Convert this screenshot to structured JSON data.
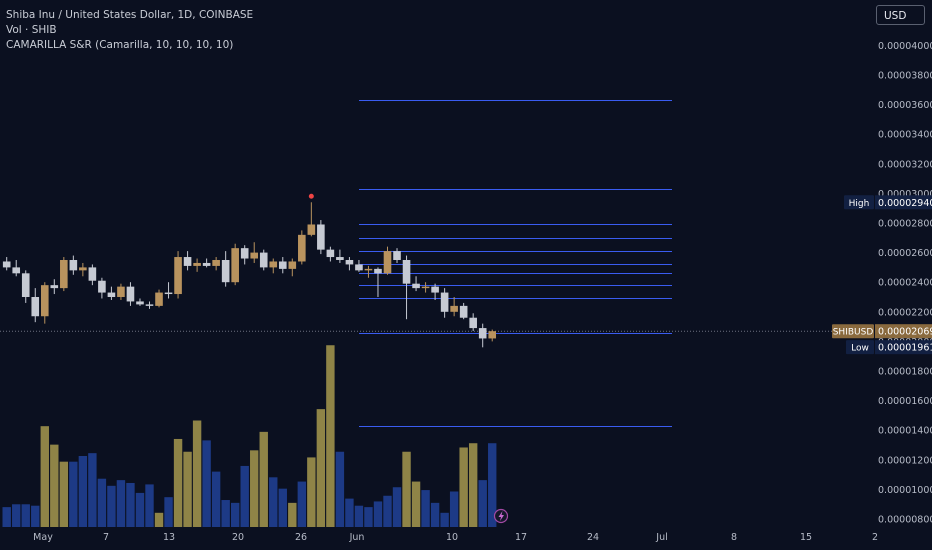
{
  "legend": {
    "line1": "Shiba Inu / United States Dollar, 1D, COINBASE",
    "line2": "Vol · SHIB",
    "line3": "CAMARILLA S&R (Camarilla, 10, 10, 10, 10)"
  },
  "currency_button": "USD",
  "colors": {
    "background": "#0b1020",
    "up": "#b9935e",
    "down": "#c6cad3",
    "vol_up": "#8f8447",
    "vol_down": "#1d3a86",
    "level_line": "#3a5cf0",
    "text": "#b7bcc8"
  },
  "chart_data": {
    "type": "candlestick",
    "symbol": "SHIBUSD",
    "ylim": [
      7.7e-06,
      4.1e-06
    ],
    "y_ticks": [
      "0.00000800",
      "0.00001000",
      "0.00001200",
      "0.00001400",
      "0.00001600",
      "0.00001800",
      "0.00002000",
      "0.00002200",
      "0.00002400",
      "0.00002600",
      "0.00002800",
      "0.00003000",
      "0.00003200",
      "0.00003400",
      "0.00003600",
      "0.00003800",
      "0.00004000"
    ],
    "x_ticks": [
      "May",
      "7",
      "13",
      "20",
      "26",
      "Jun",
      "10",
      "17",
      "24",
      "Jul",
      "8",
      "15",
      "2"
    ],
    "price_labels": [
      {
        "label": "High",
        "value": "0.00002940"
      },
      {
        "label": "SHIBUSD",
        "value": "0.00002069"
      },
      {
        "label": "Low",
        "value": "0.00001961"
      }
    ],
    "candles": [
      [
        2.54,
        2.57,
        2.48,
        2.5
      ],
      [
        2.5,
        2.55,
        2.44,
        2.46
      ],
      [
        2.46,
        2.48,
        2.26,
        2.3
      ],
      [
        2.3,
        2.36,
        2.13,
        2.17
      ],
      [
        2.17,
        2.4,
        2.12,
        2.38
      ],
      [
        2.38,
        2.42,
        2.32,
        2.36
      ],
      [
        2.36,
        2.57,
        2.34,
        2.55
      ],
      [
        2.55,
        2.58,
        2.45,
        2.48
      ],
      [
        2.48,
        2.53,
        2.44,
        2.5
      ],
      [
        2.5,
        2.52,
        2.38,
        2.41
      ],
      [
        2.41,
        2.43,
        2.29,
        2.33
      ],
      [
        2.33,
        2.37,
        2.28,
        2.3
      ],
      [
        2.3,
        2.39,
        2.28,
        2.37
      ],
      [
        2.37,
        2.4,
        2.24,
        2.27
      ],
      [
        2.27,
        2.29,
        2.24,
        2.25
      ],
      [
        2.25,
        2.27,
        2.22,
        2.24
      ],
      [
        2.24,
        2.35,
        2.23,
        2.33
      ],
      [
        2.33,
        2.4,
        2.29,
        2.32
      ],
      [
        2.32,
        2.61,
        2.29,
        2.57
      ],
      [
        2.57,
        2.61,
        2.48,
        2.51
      ],
      [
        2.51,
        2.56,
        2.47,
        2.53
      ],
      [
        2.53,
        2.56,
        2.5,
        2.51
      ],
      [
        2.51,
        2.57,
        2.48,
        2.55
      ],
      [
        2.55,
        2.61,
        2.37,
        2.4
      ],
      [
        2.4,
        2.66,
        2.38,
        2.63
      ],
      [
        2.63,
        2.65,
        2.52,
        2.56
      ],
      [
        2.56,
        2.67,
        2.53,
        2.6
      ],
      [
        2.6,
        2.62,
        2.48,
        2.5
      ],
      [
        2.5,
        2.56,
        2.46,
        2.54
      ],
      [
        2.54,
        2.57,
        2.46,
        2.49
      ],
      [
        2.49,
        2.56,
        2.44,
        2.54
      ],
      [
        2.54,
        2.75,
        2.52,
        2.72
      ],
      [
        2.72,
        2.94,
        2.71,
        2.79
      ],
      [
        2.79,
        2.82,
        2.59,
        2.62
      ],
      [
        2.62,
        2.64,
        2.54,
        2.57
      ],
      [
        2.57,
        2.62,
        2.53,
        2.55
      ],
      [
        2.55,
        2.57,
        2.48,
        2.52
      ],
      [
        2.52,
        2.55,
        2.47,
        2.48
      ],
      [
        2.48,
        2.51,
        2.43,
        2.49
      ],
      [
        2.49,
        2.5,
        2.3,
        2.46
      ],
      [
        2.46,
        2.64,
        2.45,
        2.61
      ],
      [
        2.61,
        2.63,
        2.53,
        2.55
      ],
      [
        2.55,
        2.58,
        2.15,
        2.39
      ],
      [
        2.39,
        2.44,
        2.34,
        2.36
      ],
      [
        2.36,
        2.4,
        2.33,
        2.37
      ],
      [
        2.37,
        2.39,
        2.28,
        2.33
      ],
      [
        2.33,
        2.36,
        2.16,
        2.2
      ],
      [
        2.2,
        2.3,
        2.17,
        2.24
      ],
      [
        2.24,
        2.26,
        2.15,
        2.16
      ],
      [
        2.16,
        2.19,
        2.07,
        2.09
      ],
      [
        2.09,
        2.12,
        1.96,
        2.02
      ],
      [
        2.02,
        2.08,
        2.0,
        2.069
      ]
    ],
    "volume": [
      [
        1.4,
        0
      ],
      [
        1.6,
        0
      ],
      [
        1.6,
        0
      ],
      [
        1.5,
        0
      ],
      [
        7.1,
        1
      ],
      [
        5.8,
        1
      ],
      [
        4.6,
        1
      ],
      [
        4.6,
        0
      ],
      [
        5.0,
        0
      ],
      [
        5.2,
        0
      ],
      [
        3.4,
        0
      ],
      [
        2.9,
        0
      ],
      [
        3.3,
        0
      ],
      [
        3.1,
        0
      ],
      [
        2.4,
        0
      ],
      [
        3.0,
        0
      ],
      [
        1.0,
        1
      ],
      [
        2.1,
        0
      ],
      [
        6.2,
        1
      ],
      [
        5.3,
        1
      ],
      [
        7.5,
        1
      ],
      [
        6.1,
        0
      ],
      [
        3.9,
        0
      ],
      [
        1.9,
        0
      ],
      [
        1.7,
        0
      ],
      [
        4.3,
        0
      ],
      [
        5.4,
        1
      ],
      [
        6.7,
        1
      ],
      [
        3.5,
        0
      ],
      [
        2.7,
        0
      ],
      [
        1.7,
        1
      ],
      [
        3.2,
        0
      ],
      [
        4.9,
        1
      ],
      [
        8.3,
        1
      ],
      [
        12.8,
        1
      ],
      [
        5.3,
        0
      ],
      [
        2.0,
        0
      ],
      [
        1.5,
        0
      ],
      [
        1.4,
        0
      ],
      [
        1.8,
        0
      ],
      [
        2.2,
        0
      ],
      [
        2.8,
        0
      ],
      [
        5.3,
        1
      ],
      [
        3.2,
        1
      ],
      [
        2.6,
        0
      ],
      [
        1.7,
        0
      ],
      [
        1.0,
        0
      ],
      [
        2.5,
        0
      ],
      [
        5.6,
        1
      ],
      [
        5.9,
        1
      ],
      [
        3.3,
        0
      ],
      [
        5.9,
        0
      ]
    ],
    "camarilla_levels": [
      3.63,
      3.03,
      2.79,
      2.7,
      2.61,
      2.52,
      2.46,
      2.38,
      2.29,
      2.06,
      1.43
    ]
  }
}
